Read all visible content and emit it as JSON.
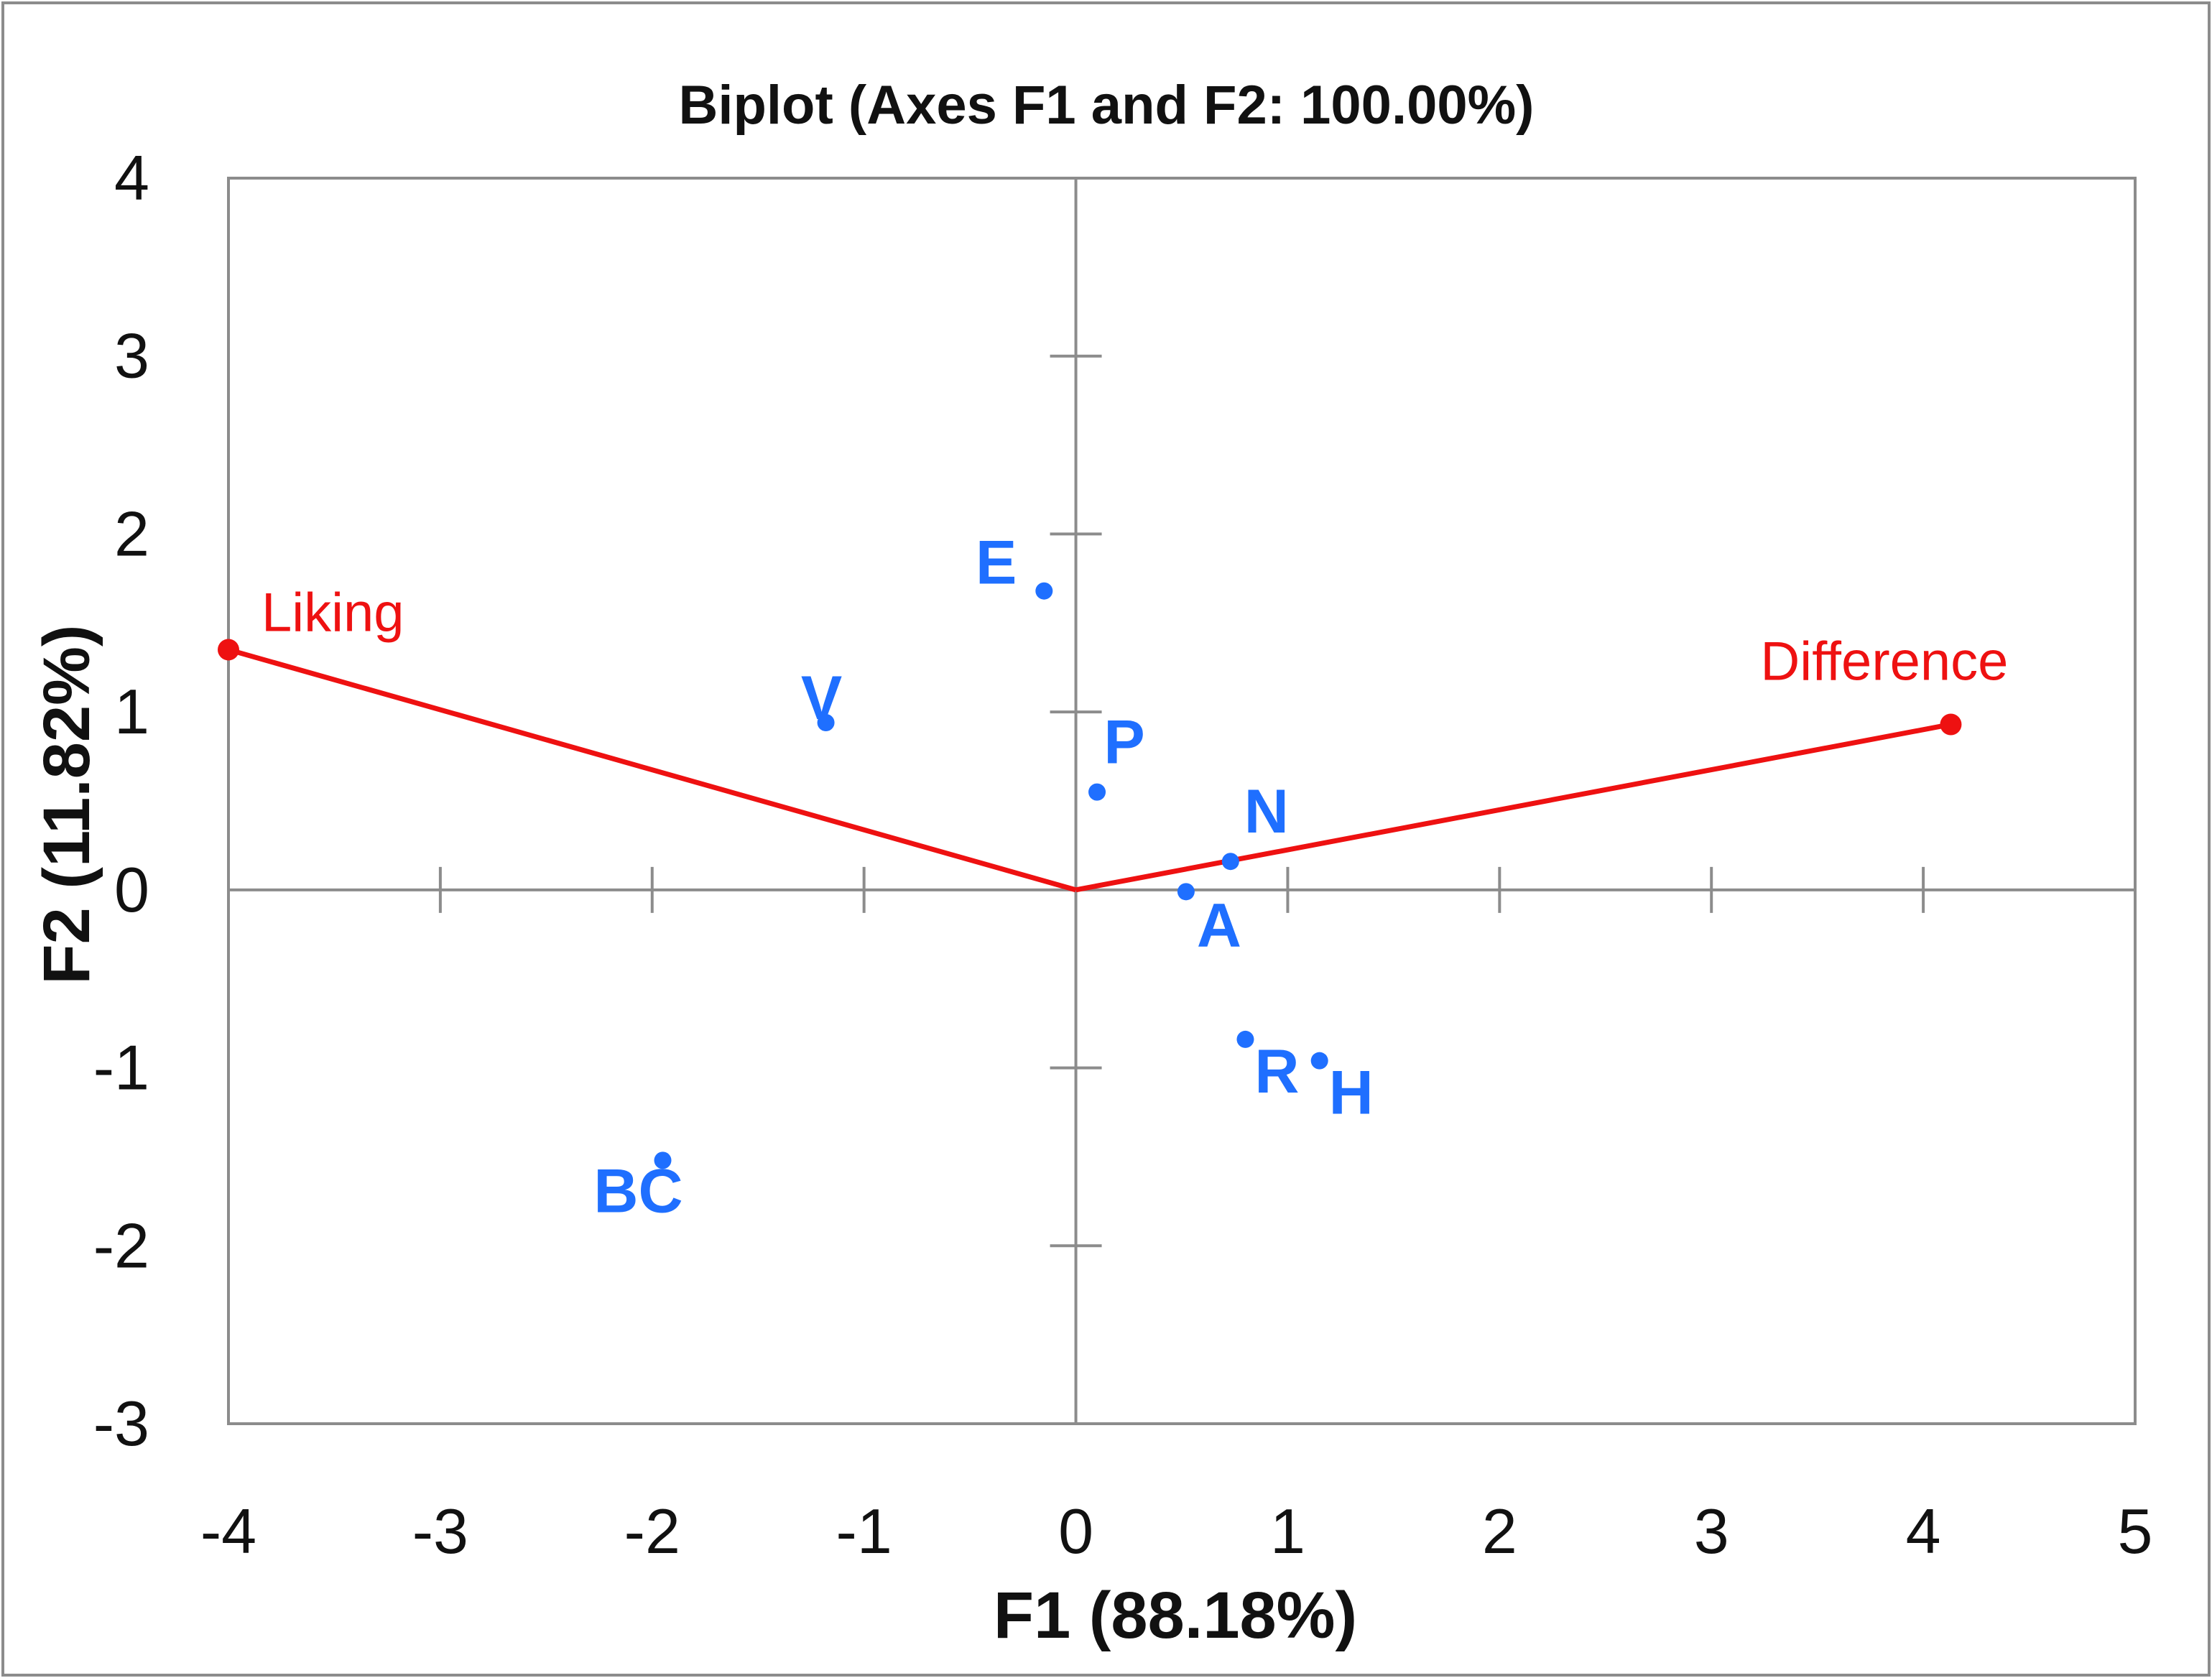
{
  "chart_data": {
    "type": "scatter",
    "title": "Biplot (Axes F1 and F2: 100.00%)",
    "xlabel": "F1 (88.18%)",
    "ylabel": "F2 (11.82%)",
    "xlim": [
      -4,
      5
    ],
    "ylim": [
      -3,
      4
    ],
    "xticks": [
      -4,
      -3,
      -2,
      -1,
      0,
      1,
      2,
      3,
      4,
      5
    ],
    "yticks": [
      -3,
      -2,
      -1,
      0,
      1,
      2,
      3,
      4
    ],
    "grid": false,
    "legend": "none",
    "observations": {
      "color": "#1f6fff",
      "points": [
        {
          "label": "E",
          "x": -0.15,
          "y": 1.68
        },
        {
          "label": "V",
          "x": -1.18,
          "y": 0.94
        },
        {
          "label": "P",
          "x": 0.1,
          "y": 0.55
        },
        {
          "label": "N",
          "x": 0.73,
          "y": 0.16
        },
        {
          "label": "A",
          "x": 0.52,
          "y": -0.01
        },
        {
          "label": "R",
          "x": 0.8,
          "y": -0.84
        },
        {
          "label": "H",
          "x": 1.15,
          "y": -0.96
        },
        {
          "label": "BC",
          "x": -1.95,
          "y": -1.52
        }
      ]
    },
    "variables": {
      "color": "#ee1111",
      "vectors": [
        {
          "label": "Liking",
          "x": -4.0,
          "y": 1.35
        },
        {
          "label": "Difference",
          "x": 4.13,
          "y": 0.93
        }
      ]
    }
  }
}
